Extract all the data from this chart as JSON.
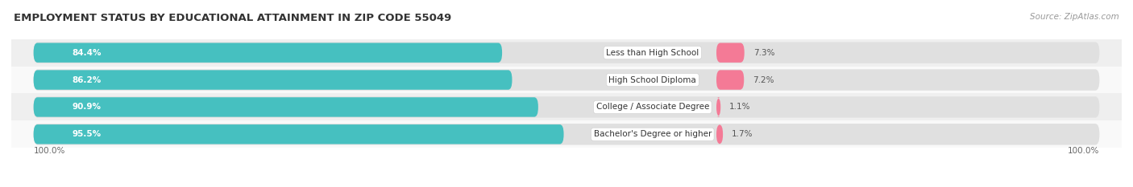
{
  "title": "EMPLOYMENT STATUS BY EDUCATIONAL ATTAINMENT IN ZIP CODE 55049",
  "source": "Source: ZipAtlas.com",
  "categories": [
    "Less than High School",
    "High School Diploma",
    "College / Associate Degree",
    "Bachelor's Degree or higher"
  ],
  "in_labor_force": [
    84.4,
    86.2,
    90.9,
    95.5
  ],
  "unemployed": [
    7.3,
    7.2,
    1.1,
    1.7
  ],
  "labor_force_color": "#46c0c0",
  "unemployed_color": "#f47a96",
  "bg_bar_color": "#e0e0e0",
  "row_bg_colors": [
    "#efefef",
    "#f9f9f9",
    "#efefef",
    "#f9f9f9"
  ],
  "title_fontsize": 9.5,
  "source_fontsize": 7.5,
  "label_fontsize": 7.5,
  "legend_fontsize": 7.5,
  "tick_fontsize": 7.5,
  "x_axis_label_left": "100.0%",
  "x_axis_label_right": "100.0%",
  "figsize": [
    14.06,
    2.33
  ],
  "dpi": 100
}
